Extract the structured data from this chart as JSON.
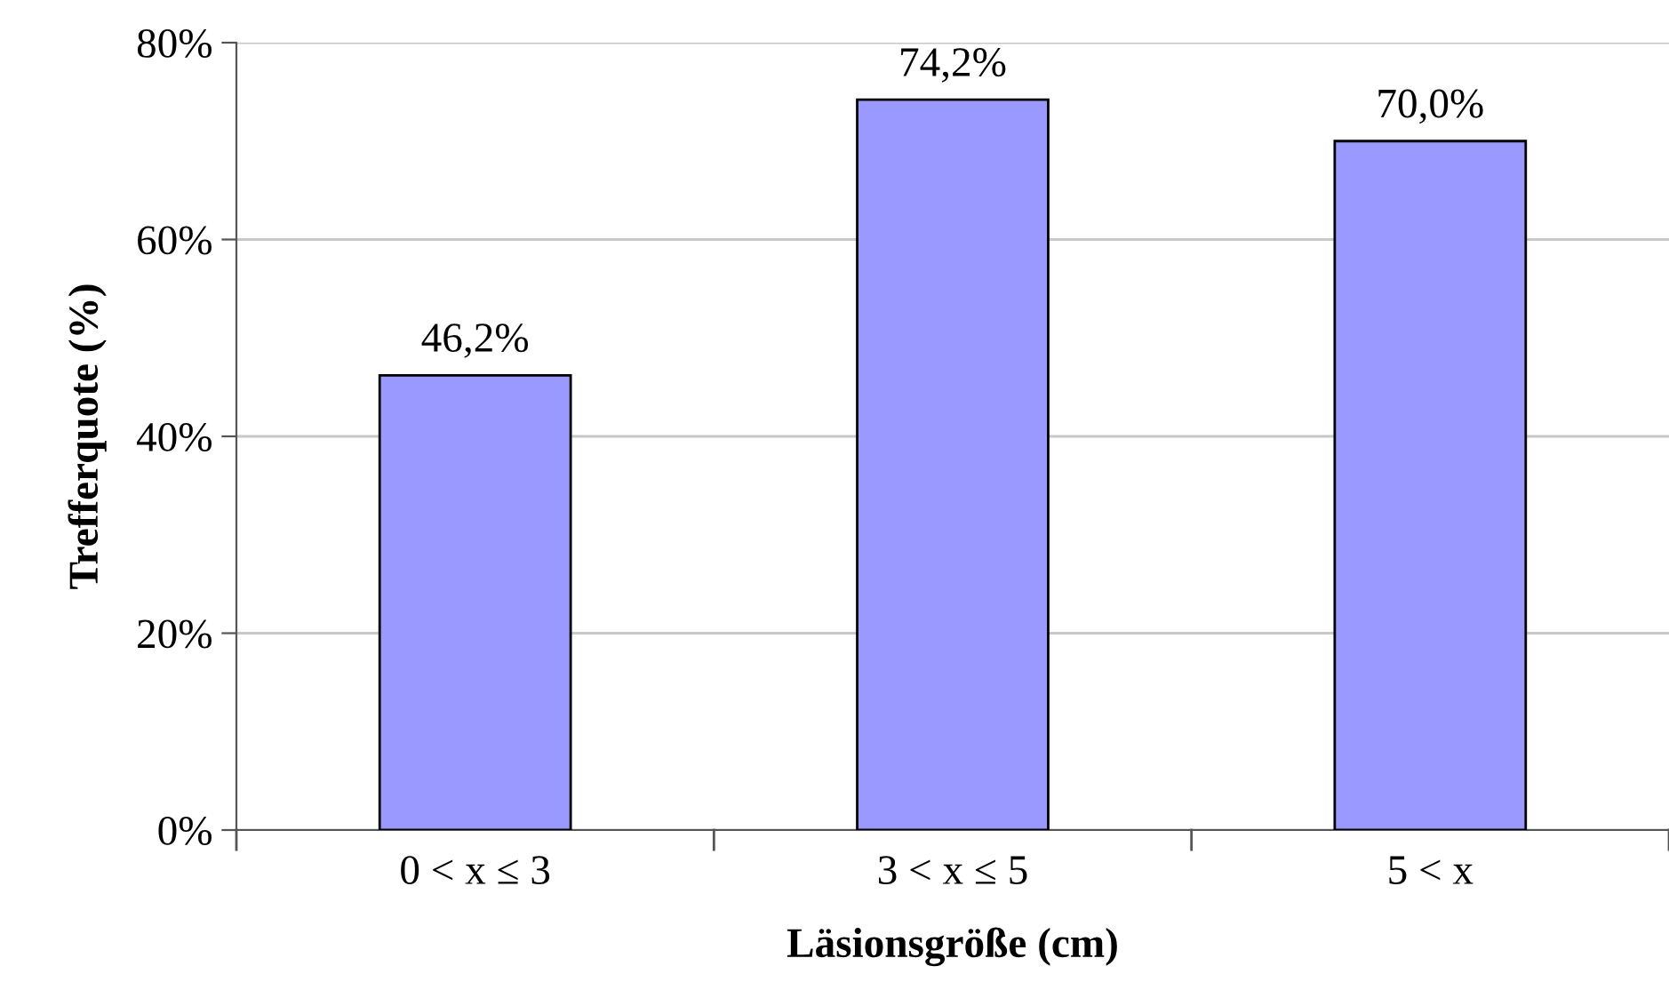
{
  "chart_data": {
    "type": "bar",
    "xlabel": "Läsionsgröße (cm)",
    "ylabel": "Trefferquote (%)",
    "categories": [
      "0 < x ≤ 3",
      "3 < x ≤ 5",
      "5 < x"
    ],
    "values": [
      46.2,
      74.2,
      70.0
    ],
    "value_labels": [
      "46,2%",
      "74,2%",
      "70,0%"
    ],
    "color": "#9999ff",
    "ylim": [
      0,
      80
    ],
    "yticks": [
      {
        "value": 0,
        "label": "0%"
      },
      {
        "value": 20,
        "label": "20%"
      },
      {
        "value": 40,
        "label": "40%"
      },
      {
        "value": 60,
        "label": "60%"
      },
      {
        "value": 80,
        "label": "80%"
      }
    ],
    "grid": "y",
    "legend": false
  }
}
